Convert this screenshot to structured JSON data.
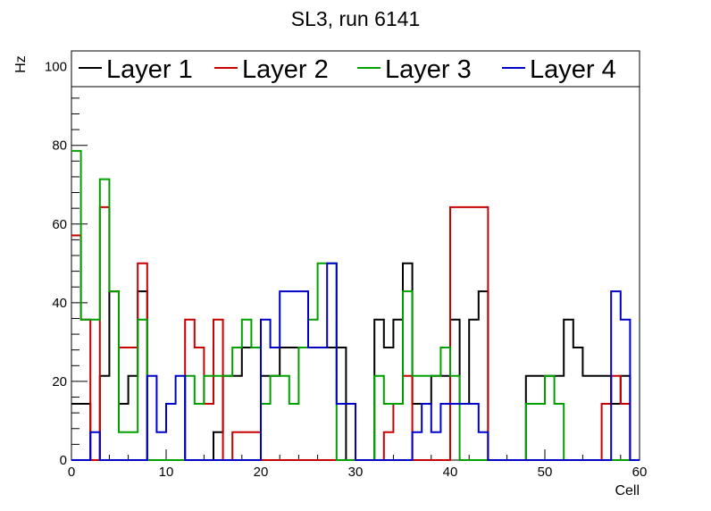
{
  "chart_data": {
    "type": "line",
    "title": "SL3, run 6141",
    "xlabel": "Cell",
    "ylabel": "Hz",
    "xlim": [
      0,
      60
    ],
    "ylim": [
      0,
      104
    ],
    "x_ticks": [
      0,
      10,
      20,
      30,
      40,
      50,
      60
    ],
    "y_ticks": [
      0,
      20,
      40,
      60,
      80,
      100
    ],
    "legend_position": "top",
    "grid": false,
    "bins": [
      0,
      1,
      2,
      3,
      4,
      5,
      6,
      7,
      8,
      9,
      10,
      11,
      12,
      13,
      14,
      15,
      16,
      17,
      18,
      19,
      20,
      21,
      22,
      23,
      24,
      25,
      26,
      27,
      28,
      29,
      30,
      31,
      32,
      33,
      34,
      35,
      36,
      37,
      38,
      39,
      40,
      41,
      42,
      43,
      44,
      45,
      46,
      47,
      48,
      49,
      50,
      51,
      52,
      53,
      54,
      55,
      56,
      57,
      58,
      59
    ],
    "series": [
      {
        "name": "Layer 1",
        "color": "#000000",
        "values": [
          14.3,
          14.3,
          0,
          21.4,
          42.9,
          14.3,
          21.4,
          42.9,
          0,
          0,
          0,
          0,
          0,
          0,
          0,
          7.1,
          21.4,
          21.4,
          28.6,
          28.6,
          21.4,
          21.4,
          28.6,
          28.6,
          28.6,
          28.6,
          28.6,
          28.6,
          28.6,
          0,
          0,
          0,
          35.7,
          28.6,
          35.7,
          50,
          14.3,
          14.3,
          21.4,
          21.4,
          35.7,
          14.3,
          35.7,
          42.9,
          0,
          0,
          0,
          0,
          21.4,
          21.4,
          21.4,
          21.4,
          35.7,
          28.6,
          21.4,
          21.4,
          21.4,
          14.3,
          21.4,
          0
        ]
      },
      {
        "name": "Layer 2",
        "color": "#c80000",
        "values": [
          57.1,
          35.7,
          0,
          64.3,
          42.9,
          28.6,
          28.6,
          50,
          0,
          0,
          0,
          0,
          35.7,
          28.6,
          14.3,
          35.7,
          0,
          7.1,
          7.1,
          7.1,
          0,
          0,
          0,
          0,
          0,
          0,
          0,
          0,
          0,
          0,
          0,
          0,
          0,
          7.1,
          14.3,
          21.4,
          0,
          0,
          0,
          0,
          64.3,
          64.3,
          64.3,
          64.3,
          0,
          0,
          0,
          0,
          0,
          0,
          0,
          0,
          0,
          0,
          0,
          0,
          14.3,
          21.4,
          14.3,
          0
        ]
      },
      {
        "name": "Layer 3",
        "color": "#00a000",
        "values": [
          78.6,
          35.7,
          35.7,
          71.4,
          42.9,
          7.1,
          7.1,
          35.7,
          0,
          0,
          0,
          0,
          21.4,
          14.3,
          21.4,
          21.4,
          21.4,
          28.6,
          35.7,
          28.6,
          14.3,
          21.4,
          21.4,
          14.3,
          28.6,
          35.7,
          50,
          50,
          0,
          0,
          0,
          0,
          21.4,
          14.3,
          14.3,
          42.9,
          21.4,
          21.4,
          21.4,
          28.6,
          21.4,
          0,
          0,
          0,
          0,
          0,
          0,
          0,
          14.3,
          14.3,
          21.4,
          14.3,
          0,
          0,
          0,
          0,
          0,
          0,
          0,
          0
        ]
      },
      {
        "name": "Layer 4",
        "color": "#0000c8",
        "values": [
          0,
          0,
          7.1,
          0,
          0,
          0,
          0,
          0,
          21.4,
          7.1,
          14.3,
          21.4,
          0,
          0,
          0,
          0,
          0,
          0,
          0,
          0,
          35.7,
          28.6,
          42.9,
          42.9,
          42.9,
          28.6,
          28.6,
          50,
          14.3,
          14.3,
          0,
          0,
          0,
          0,
          0,
          0,
          7.1,
          14.3,
          7.1,
          14.3,
          14.3,
          14.3,
          14.3,
          7.1,
          0,
          0,
          0,
          0,
          0,
          0,
          0,
          0,
          0,
          0,
          0,
          0,
          0,
          42.9,
          35.7,
          0
        ]
      }
    ]
  }
}
